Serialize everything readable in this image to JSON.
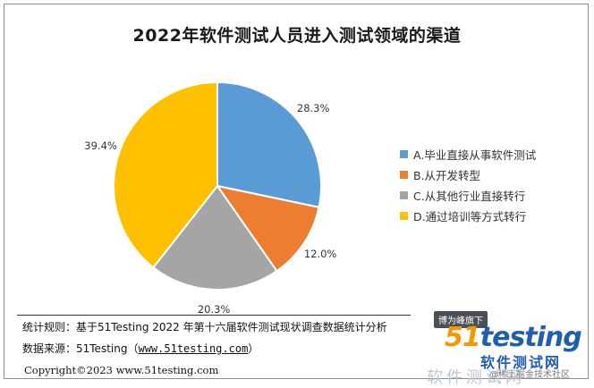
{
  "chart_data": {
    "type": "pie",
    "title": "2022年软件测试人员进入测试领域的渠道",
    "slices": [
      {
        "name": "A.毕业直接从事软件测试",
        "value": 28.3,
        "label": "28.3%",
        "color": "#5b9bd5"
      },
      {
        "name": "B.从开发转型",
        "value": 12.0,
        "label": "12.0%",
        "color": "#ed7d31"
      },
      {
        "name": "C.从其他行业直接转行",
        "value": 20.3,
        "label": "20.3%",
        "color": "#a5a5a5"
      },
      {
        "name": "D.通过培训等方式转行",
        "value": 39.4,
        "label": "39.4%",
        "color": "#ffc000"
      }
    ],
    "start": "12 o'clock",
    "direction": "clockwise",
    "legend_position": "right"
  },
  "footer": {
    "rule_text": "统计规则：基于51Testing 2022 年第十六届软件测试现状调查数据统计分析",
    "source_prefix": "数据来源：51Testing（",
    "source_link": "www.51testing.com",
    "source_suffix": "）",
    "copyright": "Copyright©2023 www.51testing.com"
  },
  "logo": {
    "badge": "博为峰旗下",
    "brand_num": "51",
    "brand_text": "testing",
    "cn_name": "软件测试网",
    "cn_shadow": "软件测试网",
    "sub": "@稀土掘金技术社区"
  }
}
